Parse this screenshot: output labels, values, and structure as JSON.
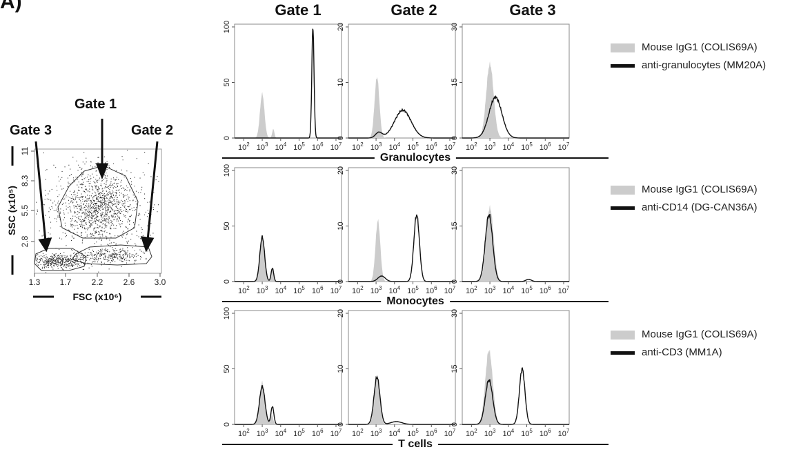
{
  "panel_label": "A)",
  "gate_headers": [
    "Gate 1",
    "Gate 2",
    "Gate 3"
  ],
  "scatter": {
    "gate_labels": [
      "Gate 1",
      "Gate 2",
      "Gate 3"
    ],
    "xlabel": "FSC (x10⁶)",
    "ylabel": "SSC (x10⁵)",
    "x_ticks": [
      "1.3",
      "1.7",
      "2.2",
      "2.6",
      "3.0"
    ],
    "y_ticks": [
      "2.8",
      "5.5",
      "8.3",
      "11"
    ]
  },
  "populations": [
    "Granulocytes",
    "Monocytes",
    "T cells"
  ],
  "legends": [
    {
      "control": "Mouse IgG1 (COLIS69A)",
      "antibody": "anti-granulocytes (MM20A)"
    },
    {
      "control": "Mouse IgG1 (COLIS69A)",
      "antibody": "anti-CD14 (DG-CAN36A)"
    },
    {
      "control": "Mouse IgG1 (COLIS69A)",
      "antibody": "anti-CD3 (MM1A)"
    }
  ],
  "colors": {
    "control_fill": "#cccccc",
    "antibody_line": "#111111"
  },
  "chart_data": [
    {
      "type": "area",
      "gate": "Gate 1",
      "population": "Granulocytes",
      "xscale": "log",
      "x_ticks": [
        2,
        3,
        4,
        5,
        6,
        7
      ],
      "ylim": [
        0,
        100
      ],
      "y_ticks": [
        0,
        50,
        100
      ],
      "series": [
        {
          "name": "Mouse IgG1 (COLIS69A)",
          "style": "filled",
          "peaks": [
            [
              3.0,
              0.12,
              40
            ],
            [
              3.6,
              0.06,
              8
            ]
          ]
        },
        {
          "name": "anti-granulocytes (MM20A)",
          "style": "line",
          "peaks": [
            [
              5.75,
              0.06,
              100
            ]
          ]
        }
      ]
    },
    {
      "type": "area",
      "gate": "Gate 2",
      "population": "Granulocytes",
      "xscale": "log",
      "x_ticks": [
        2,
        3,
        4,
        5,
        6,
        7
      ],
      "ylim": [
        0,
        20
      ],
      "y_ticks": [
        0,
        10,
        20
      ],
      "series": [
        {
          "name": "Mouse IgG1 (COLIS69A)",
          "style": "filled",
          "peaks": [
            [
              3.05,
              0.13,
              11
            ]
          ]
        },
        {
          "name": "anti-granulocytes (MM20A)",
          "style": "line",
          "peaks": [
            [
              4.45,
              0.45,
              5
            ],
            [
              3.15,
              0.18,
              1
            ]
          ]
        }
      ]
    },
    {
      "type": "area",
      "gate": "Gate 3",
      "population": "Granulocytes",
      "xscale": "log",
      "x_ticks": [
        2,
        3,
        4,
        5,
        6,
        7
      ],
      "ylim": [
        0,
        30
      ],
      "y_ticks": [
        0,
        15,
        30
      ],
      "series": [
        {
          "name": "Mouse IgG1 (COLIS69A)",
          "style": "filled",
          "peaks": [
            [
              3.0,
              0.2,
              20
            ]
          ]
        },
        {
          "name": "anti-granulocytes (MM20A)",
          "style": "line",
          "peaks": [
            [
              3.3,
              0.35,
              11
            ]
          ]
        }
      ]
    },
    {
      "type": "area",
      "gate": "Gate 1",
      "population": "Monocytes",
      "xscale": "log",
      "x_ticks": [
        2,
        3,
        4,
        5,
        6,
        7
      ],
      "ylim": [
        0,
        100
      ],
      "y_ticks": [
        0,
        50,
        100
      ],
      "series": [
        {
          "name": "Mouse IgG1 (COLIS69A)",
          "style": "filled",
          "peaks": [
            [
              3.0,
              0.13,
              40
            ],
            [
              3.55,
              0.07,
              12
            ]
          ]
        },
        {
          "name": "anti-CD14 (DG-CAN36A)",
          "style": "line",
          "peaks": [
            [
              3.0,
              0.13,
              40
            ],
            [
              3.55,
              0.07,
              12
            ]
          ]
        }
      ]
    },
    {
      "type": "area",
      "gate": "Gate 2",
      "population": "Monocytes",
      "xscale": "log",
      "x_ticks": [
        2,
        3,
        4,
        5,
        6,
        7
      ],
      "ylim": [
        0,
        20
      ],
      "y_ticks": [
        0,
        10,
        20
      ],
      "series": [
        {
          "name": "Mouse IgG1 (COLIS69A)",
          "style": "filled",
          "peaks": [
            [
              3.1,
              0.13,
              11
            ]
          ]
        },
        {
          "name": "anti-CD14 (DG-CAN36A)",
          "style": "line",
          "peaks": [
            [
              5.2,
              0.15,
              12
            ],
            [
              3.3,
              0.2,
              1
            ]
          ]
        }
      ]
    },
    {
      "type": "area",
      "gate": "Gate 3",
      "population": "Monocytes",
      "xscale": "log",
      "x_ticks": [
        2,
        3,
        4,
        5,
        6,
        7
      ],
      "ylim": [
        0,
        30
      ],
      "y_ticks": [
        0,
        15,
        30
      ],
      "series": [
        {
          "name": "Mouse IgG1 (COLIS69A)",
          "style": "filled",
          "peaks": [
            [
              3.0,
              0.2,
              20
            ]
          ]
        },
        {
          "name": "anti-CD14 (DG-CAN36A)",
          "style": "line",
          "peaks": [
            [
              2.95,
              0.2,
              18
            ],
            [
              5.1,
              0.15,
              0.6
            ]
          ]
        }
      ]
    },
    {
      "type": "area",
      "gate": "Gate 1",
      "population": "T cells",
      "xscale": "log",
      "x_ticks": [
        2,
        3,
        4,
        5,
        6,
        7
      ],
      "ylim": [
        0,
        100
      ],
      "y_ticks": [
        0,
        50,
        100
      ],
      "series": [
        {
          "name": "Mouse IgG1 (COLIS69A)",
          "style": "filled",
          "peaks": [
            [
              3.0,
              0.15,
              38
            ],
            [
              3.5,
              0.08,
              10
            ]
          ]
        },
        {
          "name": "anti-CD3 (MM1A)",
          "style": "line",
          "peaks": [
            [
              3.0,
              0.15,
              34
            ],
            [
              3.55,
              0.08,
              16
            ]
          ]
        }
      ]
    },
    {
      "type": "area",
      "gate": "Gate 2",
      "population": "T cells",
      "xscale": "log",
      "x_ticks": [
        2,
        3,
        4,
        5,
        6,
        7
      ],
      "ylim": [
        0,
        20
      ],
      "y_ticks": [
        0,
        10,
        20
      ],
      "series": [
        {
          "name": "Mouse IgG1 (COLIS69A)",
          "style": "filled",
          "peaks": [
            [
              3.05,
              0.14,
              9
            ]
          ]
        },
        {
          "name": "anti-CD3 (MM1A)",
          "style": "line",
          "peaks": [
            [
              3.05,
              0.16,
              8.5
            ],
            [
              4.1,
              0.3,
              0.5
            ]
          ]
        }
      ]
    },
    {
      "type": "area",
      "gate": "Gate 3",
      "population": "T cells",
      "xscale": "log",
      "x_ticks": [
        2,
        3,
        4,
        5,
        6,
        7
      ],
      "ylim": [
        0,
        30
      ],
      "y_ticks": [
        0,
        15,
        30
      ],
      "series": [
        {
          "name": "Mouse IgG1 (COLIS69A)",
          "style": "filled",
          "peaks": [
            [
              2.95,
              0.2,
              20
            ]
          ]
        },
        {
          "name": "anti-CD3 (MM1A)",
          "style": "line",
          "peaks": [
            [
              2.95,
              0.2,
              12
            ],
            [
              4.75,
              0.15,
              15
            ]
          ]
        }
      ]
    }
  ]
}
